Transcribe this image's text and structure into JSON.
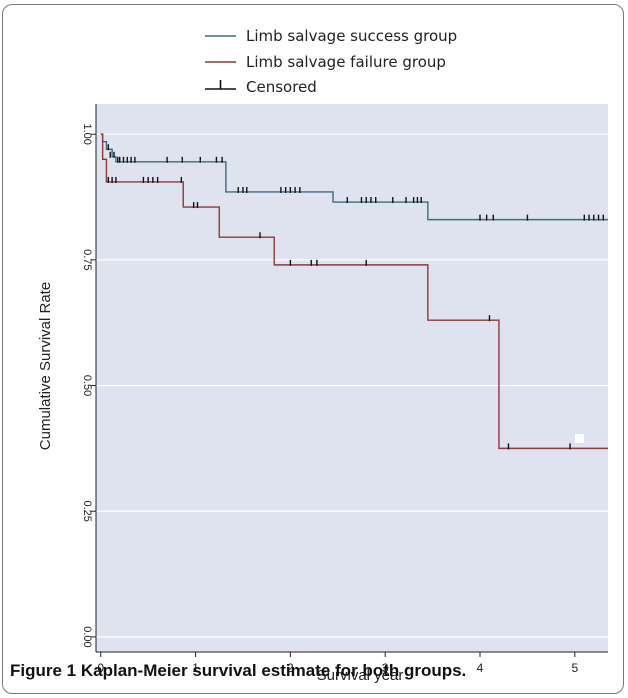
{
  "caption": {
    "label": "Figure 1",
    "text": "Kaplan-Meier survival estimate for both groups."
  },
  "colors": {
    "plot_bg": "#dfe3ef",
    "grid": "#ffffff",
    "success": "#3d6b82",
    "failure": "#8f3a3a",
    "censor": "#111111"
  },
  "chart_data": {
    "type": "line",
    "title": "",
    "xlabel": "Survival year",
    "ylabel": "Cumulative Survival Rate",
    "xlim": [
      -0.05,
      5.35
    ],
    "ylim": [
      -0.03,
      1.06
    ],
    "x_ticks": [
      0,
      1,
      2,
      3,
      4,
      5
    ],
    "x_tick_labels": [
      "0",
      "1",
      "2",
      "3",
      "4",
      "5"
    ],
    "y_ticks": [
      0,
      0.25,
      0.5,
      0.75,
      1
    ],
    "y_tick_labels": [
      "0.00",
      "0.25",
      "0.50",
      "0.75",
      "1.00"
    ],
    "grid": true,
    "legend": [
      {
        "label": "Limb salvage success group",
        "kind": "line",
        "series": "success"
      },
      {
        "label": "Limb salvage failure group",
        "kind": "line",
        "series": "failure"
      },
      {
        "label": "Censored",
        "kind": "censor"
      }
    ],
    "series": [
      {
        "key": "success",
        "name": "Limb salvage success group",
        "steps": [
          [
            0,
            1.0
          ],
          [
            0.02,
            0.985
          ],
          [
            0.06,
            0.97
          ],
          [
            0.12,
            0.955
          ],
          [
            0.16,
            0.945
          ],
          [
            1.32,
            0.885
          ],
          [
            2.45,
            0.865
          ],
          [
            3.45,
            0.83
          ],
          [
            5.35,
            0.83
          ]
        ],
        "censored": [
          [
            0.08,
            0.97
          ],
          [
            0.1,
            0.955
          ],
          [
            0.14,
            0.955
          ],
          [
            0.18,
            0.945
          ],
          [
            0.2,
            0.945
          ],
          [
            0.24,
            0.945
          ],
          [
            0.28,
            0.945
          ],
          [
            0.32,
            0.945
          ],
          [
            0.36,
            0.945
          ],
          [
            0.7,
            0.945
          ],
          [
            0.86,
            0.945
          ],
          [
            1.05,
            0.945
          ],
          [
            1.22,
            0.945
          ],
          [
            1.28,
            0.945
          ],
          [
            1.45,
            0.885
          ],
          [
            1.5,
            0.885
          ],
          [
            1.54,
            0.885
          ],
          [
            1.9,
            0.885
          ],
          [
            1.95,
            0.885
          ],
          [
            2.0,
            0.885
          ],
          [
            2.05,
            0.885
          ],
          [
            2.1,
            0.885
          ],
          [
            2.6,
            0.865
          ],
          [
            2.75,
            0.865
          ],
          [
            2.8,
            0.865
          ],
          [
            2.85,
            0.865
          ],
          [
            2.9,
            0.865
          ],
          [
            3.08,
            0.865
          ],
          [
            3.22,
            0.865
          ],
          [
            3.3,
            0.865
          ],
          [
            3.34,
            0.865
          ],
          [
            3.38,
            0.865
          ],
          [
            4.0,
            0.83
          ],
          [
            4.07,
            0.83
          ],
          [
            4.14,
            0.83
          ],
          [
            4.5,
            0.83
          ],
          [
            5.1,
            0.83
          ],
          [
            5.15,
            0.83
          ],
          [
            5.2,
            0.83
          ],
          [
            5.25,
            0.83
          ],
          [
            5.3,
            0.83
          ]
        ]
      },
      {
        "key": "failure",
        "name": "Limb salvage failure group",
        "steps": [
          [
            0,
            1.0
          ],
          [
            0.02,
            0.95
          ],
          [
            0.06,
            0.905
          ],
          [
            0.87,
            0.855
          ],
          [
            1.25,
            0.795
          ],
          [
            1.83,
            0.74
          ],
          [
            3.45,
            0.63
          ],
          [
            4.2,
            0.375
          ],
          [
            5.35,
            0.375
          ]
        ],
        "censored": [
          [
            0.08,
            0.905
          ],
          [
            0.12,
            0.905
          ],
          [
            0.16,
            0.905
          ],
          [
            0.45,
            0.905
          ],
          [
            0.5,
            0.905
          ],
          [
            0.55,
            0.905
          ],
          [
            0.6,
            0.905
          ],
          [
            0.85,
            0.905
          ],
          [
            0.98,
            0.855
          ],
          [
            1.02,
            0.855
          ],
          [
            1.68,
            0.795
          ],
          [
            2.0,
            0.74
          ],
          [
            2.22,
            0.74
          ],
          [
            2.28,
            0.74
          ],
          [
            2.8,
            0.74
          ],
          [
            4.1,
            0.63
          ],
          [
            4.3,
            0.375
          ],
          [
            4.95,
            0.375
          ]
        ]
      }
    ]
  }
}
